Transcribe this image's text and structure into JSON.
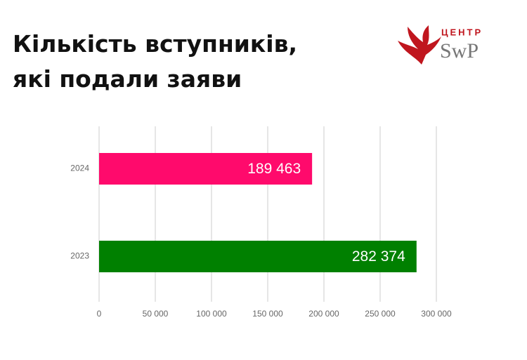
{
  "logo": {
    "top": "ЦЕНТР",
    "name": "SwP"
  },
  "chart_data": {
    "type": "bar",
    "orientation": "horizontal",
    "title": "Кількість вступників, які подали заяви",
    "categories": [
      "2024",
      "2023"
    ],
    "values": [
      189463,
      282374
    ],
    "value_labels": [
      "189 463",
      "282 374"
    ],
    "colors": [
      "#ff0a6c",
      "#008000"
    ],
    "xlim": [
      0,
      300000
    ],
    "xticks": [
      0,
      {
        "value": 50000,
        "label": "50 000"
      },
      {
        "value": 100000,
        "label": "100 000"
      },
      {
        "value": 150000,
        "label": "150 000"
      },
      {
        "value": 200000,
        "label": "200 000"
      },
      {
        "value": 250000,
        "label": "250 000"
      },
      {
        "value": 300000,
        "label": "300 000"
      }
    ],
    "grid": true
  }
}
